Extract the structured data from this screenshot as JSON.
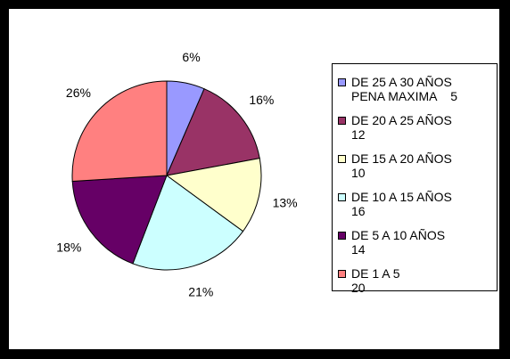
{
  "chart_data": {
    "type": "pie",
    "start_angle_deg": 0,
    "direction": "clockwise",
    "slices": [
      {
        "legend": "DE 25 A 30 AÑOS\nPENA MAXIMA    5",
        "value": 5,
        "percent_label": "6%",
        "color": "#9999ff"
      },
      {
        "legend": "DE 20 A 25 AÑOS\n12",
        "value": 12,
        "percent_label": "16%",
        "color": "#993366"
      },
      {
        "legend": "DE 15 A 20 AÑOS\n10",
        "value": 10,
        "percent_label": "13%",
        "color": "#ffffcc"
      },
      {
        "legend": "DE 10 A 15 AÑOS\n16",
        "value": 16,
        "percent_label": "21%",
        "color": "#ccffff"
      },
      {
        "legend": "DE 5 A 10 AÑOS\n14",
        "value": 14,
        "percent_label": "18%",
        "color": "#660066"
      },
      {
        "legend": "DE 1 A 5\n20",
        "value": 20,
        "percent_label": "26%",
        "color": "#ff8080"
      }
    ],
    "legend_position": "right"
  }
}
